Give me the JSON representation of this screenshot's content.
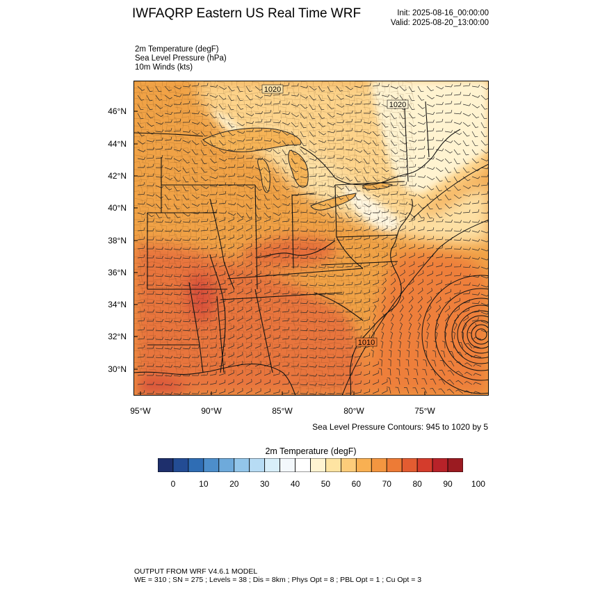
{
  "header": {
    "title": "IWFAQRP Eastern US Real Time WRF",
    "init": "Init: 2025-08-16_00:00:00",
    "valid": "Valid: 2025-08-20_13:00:00"
  },
  "variables": [
    "2m Temperature   (degF)",
    "Sea Level Pressure   (hPa)",
    "10m Winds   (kts)"
  ],
  "map": {
    "lat_labels": [
      "46°N",
      "44°N",
      "42°N",
      "40°N",
      "38°N",
      "36°N",
      "34°N",
      "32°N",
      "30°N"
    ],
    "lon_labels": [
      "95°W",
      "90°W",
      "85°W",
      "80°W",
      "75°W"
    ],
    "contour_labels": [
      "1020",
      "1020",
      "1010"
    ],
    "cyclone_center": {
      "lon": -71.0,
      "lat": 32.2
    },
    "colors": {
      "warm_base": "#f0a246",
      "hot": "#e8703a",
      "very_hot": "#d8503a",
      "mild": "#fdd389",
      "cool": "#fff4d2",
      "water": "#ef8a3c"
    }
  },
  "contour_note": "Sea Level Pressure Contours: 945 to 1020 by 5",
  "colorbar": {
    "title": "2m Temperature  (degF)",
    "ticks": [
      "0",
      "10",
      "20",
      "30",
      "40",
      "50",
      "60",
      "70",
      "80",
      "90",
      "100"
    ],
    "colors": [
      "#1e2f6c",
      "#234c94",
      "#2f6db4",
      "#4d8ecb",
      "#6eaadb",
      "#93c6ea",
      "#b7dcf4",
      "#d8eef9",
      "#f3f8fc",
      "#ffffff",
      "#fff4d2",
      "#fee4a2",
      "#fdcc7a",
      "#f9b052",
      "#f39640",
      "#ed7b36",
      "#e35c31",
      "#d43c2c",
      "#b82229",
      "#9b1b21"
    ]
  },
  "footer": {
    "line1": "OUTPUT FROM WRF V4.6.1 MODEL",
    "line2": "WE = 310 ; SN = 275 ; Levels = 38 ; Dis = 8km ; Phys Opt = 8 ; PBL Opt = 1 ; Cu Opt = 3"
  }
}
